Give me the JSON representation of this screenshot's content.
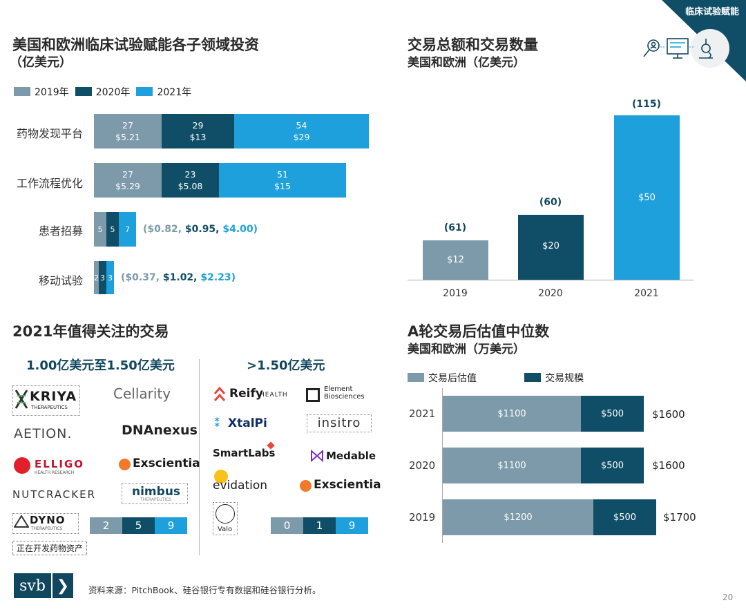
{
  "header_tag": "临床试验赋能",
  "page_number": "20",
  "colors": {
    "y2019": "#7d9aaa",
    "y2020": "#0f4e66",
    "y2021": "#1ea0dc",
    "dark_teal": "#10465e"
  },
  "left_chart": {
    "title_line1": "美国和欧洲临床试验赋能各子领域投资",
    "title_line2": "（亿美元）",
    "legend": [
      "2019年",
      "2020年",
      "2021年"
    ],
    "categories": [
      "药物发现平台",
      "工作流程优化",
      "患者招募",
      "移动试验"
    ],
    "bars": [
      [
        {
          "count": "27",
          "amt": "$5.21"
        },
        {
          "count": "29",
          "amt": "$13"
        },
        {
          "count": "54",
          "amt": "$29"
        }
      ],
      [
        {
          "count": "27",
          "amt": "$5.29"
        },
        {
          "count": "23",
          "amt": "$5.08"
        },
        {
          "count": "51",
          "amt": "$15"
        }
      ],
      [
        {
          "count": "5"
        },
        {
          "count": "5"
        },
        {
          "count": "7"
        }
      ],
      [
        {
          "count": "2"
        },
        {
          "count": "3"
        },
        {
          "count": "3"
        }
      ]
    ],
    "recruit_note": {
      "open": "(",
      "a": "$0.82,",
      "b": "$0.95,",
      "c": "$4.00",
      "close": ")"
    },
    "mobile_note": {
      "open": "(",
      "a": "$0.37,",
      "b": "$1.02,",
      "c": "$2.23",
      "close": ")"
    }
  },
  "right_chart": {
    "title_line1": "交易总额和交易数量",
    "title_line2": "美国和欧洲（亿美元）",
    "years": [
      "2019",
      "2020",
      "2021"
    ],
    "counts": [
      "(61)",
      "(60)",
      "(115)"
    ],
    "amount_labels": [
      "$12",
      "$20",
      "$50"
    ]
  },
  "deals": {
    "title": "2021年值得关注的交易",
    "col1_title": "1.00亿美元至1.50亿美元",
    "col2_title": ">1.50亿美元",
    "col1_logos": [
      "KRIYA",
      "THERAPEUTICS",
      "Cellarity",
      "AETION.",
      "DNAnexus",
      "ELLIGO",
      "HEALTH RESEARCH",
      "Exscientia",
      "NUTCRACKER",
      "nimbus",
      "THERAPEUTICS",
      "DYNO",
      "THERAPEUTICS"
    ],
    "col2_logos": [
      "Reify",
      "HEALTH",
      "Element",
      "Biosciences",
      "XtalPi",
      "insitro",
      "SmartLabs",
      "Medable",
      "evidation",
      "Exscientia",
      "Valo"
    ],
    "col1_counts": [
      "2",
      "5",
      "9"
    ],
    "col2_counts": [
      "0",
      "1",
      "9"
    ],
    "asset_note": "正在开发药物资产"
  },
  "valuation_chart": {
    "title_line1": "A轮交易后估值中位数",
    "title_line2": "美国和欧洲（万美元）",
    "legend": [
      "交易后估值",
      "交易规模"
    ],
    "rows": [
      {
        "year": "2021",
        "post": "$1100",
        "size": "$500",
        "total": "$1600"
      },
      {
        "year": "2020",
        "post": "$1100",
        "size": "$500",
        "total": "$1600"
      },
      {
        "year": "2019",
        "post": "$1200",
        "size": "$500",
        "total": "$1700"
      }
    ]
  },
  "chart_data": [
    {
      "type": "bar",
      "title": "美国和欧洲临床试验赋能各子领域投资（亿美元）",
      "orientation": "horizontal-stacked",
      "categories": [
        "药物发现平台",
        "工作流程优化",
        "患者招募",
        "移动试验"
      ],
      "series": [
        {
          "name": "2019年",
          "counts": [
            27,
            27,
            5,
            2
          ],
          "values": [
            5.21,
            5.29,
            0.82,
            0.37
          ]
        },
        {
          "name": "2020年",
          "counts": [
            29,
            23,
            5,
            3
          ],
          "values": [
            13,
            5.08,
            0.95,
            1.02
          ]
        },
        {
          "name": "2021年",
          "counts": [
            54,
            51,
            7,
            3
          ],
          "values": [
            29,
            15,
            4.0,
            2.23
          ]
        }
      ]
    },
    {
      "type": "bar",
      "title": "交易总额和交易数量 美国和欧洲（亿美元）",
      "categories": [
        "2019",
        "2020",
        "2021"
      ],
      "values": [
        12,
        20,
        50
      ],
      "deal_counts": [
        61,
        60,
        115
      ]
    },
    {
      "type": "bar",
      "title": "A轮交易后估值中位数 美国和欧洲（万美元）",
      "orientation": "horizontal-stacked",
      "categories": [
        "2021",
        "2020",
        "2019"
      ],
      "series": [
        {
          "name": "交易后估值",
          "values": [
            1100,
            1100,
            1200
          ]
        },
        {
          "name": "交易规模",
          "values": [
            500,
            500,
            500
          ]
        }
      ],
      "totals": [
        1600,
        1600,
        1700
      ]
    }
  ],
  "footer": {
    "logo": "svb",
    "source": "资料来源：PitchBook、硅谷银行专有数据和硅谷银行分析。"
  }
}
